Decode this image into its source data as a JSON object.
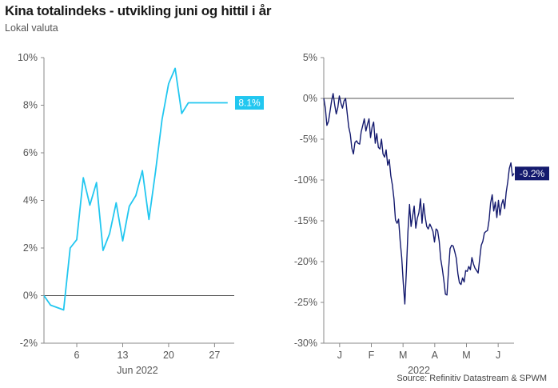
{
  "title": "Kina totalindeks - utvikling juni og hittil i år",
  "subtitle": "Lokal valuta",
  "source": "Source: Refinitiv Datastream & SPWM",
  "colors": {
    "left_line": "#22c7f0",
    "right_line": "#141a6e",
    "zero_line": "#555555",
    "axis": "#888888"
  },
  "chart_data": [
    {
      "type": "line",
      "title": "",
      "xlabel": "Jun 2022",
      "ylabel": "",
      "ylim": [
        -2,
        10
      ],
      "yticks": [
        "10%",
        "8%",
        "6%",
        "4%",
        "2%",
        "0%",
        "-2%"
      ],
      "ytick_values": [
        10,
        8,
        6,
        4,
        2,
        0,
        -2
      ],
      "xticks": [
        "6",
        "13",
        "20",
        "27"
      ],
      "xtick_values": [
        6,
        13,
        20,
        27
      ],
      "xlim": [
        1,
        30
      ],
      "end_label": "8.1%",
      "series": [
        {
          "x": [
            1,
            2,
            3,
            4,
            5,
            6,
            7,
            8,
            9,
            10,
            11,
            12,
            13,
            14,
            15,
            16,
            17,
            18,
            19,
            20,
            21,
            22,
            23,
            24,
            25,
            26,
            27,
            28,
            29
          ],
          "values": [
            0,
            -0.4,
            -0.5,
            -0.6,
            2.0,
            2.35,
            4.95,
            3.8,
            4.75,
            1.9,
            2.6,
            3.9,
            2.3,
            3.75,
            4.2,
            5.25,
            3.2,
            5.2,
            7.4,
            8.9,
            9.55,
            7.65,
            8.1,
            8.1,
            8.1,
            8.1,
            8.1,
            8.1,
            8.1
          ]
        }
      ]
    },
    {
      "type": "line",
      "title": "",
      "xlabel": "2022",
      "ylabel": "",
      "ylim": [
        -30,
        5
      ],
      "yticks": [
        "5%",
        "0%",
        "-5%",
        "-10%",
        "-15%",
        "-20%",
        "-25%",
        "-30%"
      ],
      "ytick_values": [
        5,
        0,
        -5,
        -10,
        -15,
        -20,
        -25,
        -30
      ],
      "xticks": [
        "J",
        "F",
        "M",
        "A",
        "M",
        "J"
      ],
      "end_label": "-9.2%",
      "series": [
        {
          "values": [
            0,
            -1.2,
            -3.3,
            -2.8,
            -1.6,
            -0.3,
            0.6,
            -0.8,
            -1.9,
            -1.1,
            0.3,
            -0.6,
            -1.2,
            -0.3,
            0.0,
            -1.8,
            -3.5,
            -4.4,
            -6.1,
            -6.8,
            -5.4,
            -5.2,
            -5.5,
            -5.6,
            -4.1,
            -3.3,
            -2.5,
            -4.0,
            -3.2,
            -2.5,
            -4.8,
            -3.5,
            -2.9,
            -5.5,
            -4.3,
            -6.0,
            -6.2,
            -5.0,
            -6.8,
            -7.2,
            -6.3,
            -8.2,
            -7.5,
            -9.5,
            -10.6,
            -12.3,
            -14.9,
            -15.3,
            -14.8,
            -17.5,
            -19.5,
            -22.7,
            -25.2,
            -21.0,
            -16.3,
            -13.0,
            -15.7,
            -14.4,
            -13.2,
            -15.9,
            -14.7,
            -14.0,
            -12.3,
            -15.3,
            -12.9,
            -14.5,
            -15.7,
            -16.0,
            -15.4,
            -15.8,
            -16.3,
            -17.6,
            -16.0,
            -16.2,
            -17.5,
            -19.7,
            -20.9,
            -22.3,
            -24.0,
            -24.1,
            -21.0,
            -18.4,
            -18.0,
            -18.1,
            -18.8,
            -19.6,
            -21.5,
            -22.6,
            -22.8,
            -22.0,
            -22.5,
            -21.1,
            -21.2,
            -20.6,
            -21.0,
            -19.5,
            -20.3,
            -20.8,
            -21.1,
            -21.4,
            -19.6,
            -18.0,
            -17.5,
            -16.5,
            -16.3,
            -16.2,
            -14.9,
            -12.8,
            -11.8,
            -13.8,
            -12.7,
            -14.6,
            -12.5,
            -14.3,
            -13.0,
            -12.4,
            -13.5,
            -11.5,
            -10.2,
            -8.6,
            -7.9,
            -9.5,
            -9.2
          ]
        }
      ]
    }
  ]
}
